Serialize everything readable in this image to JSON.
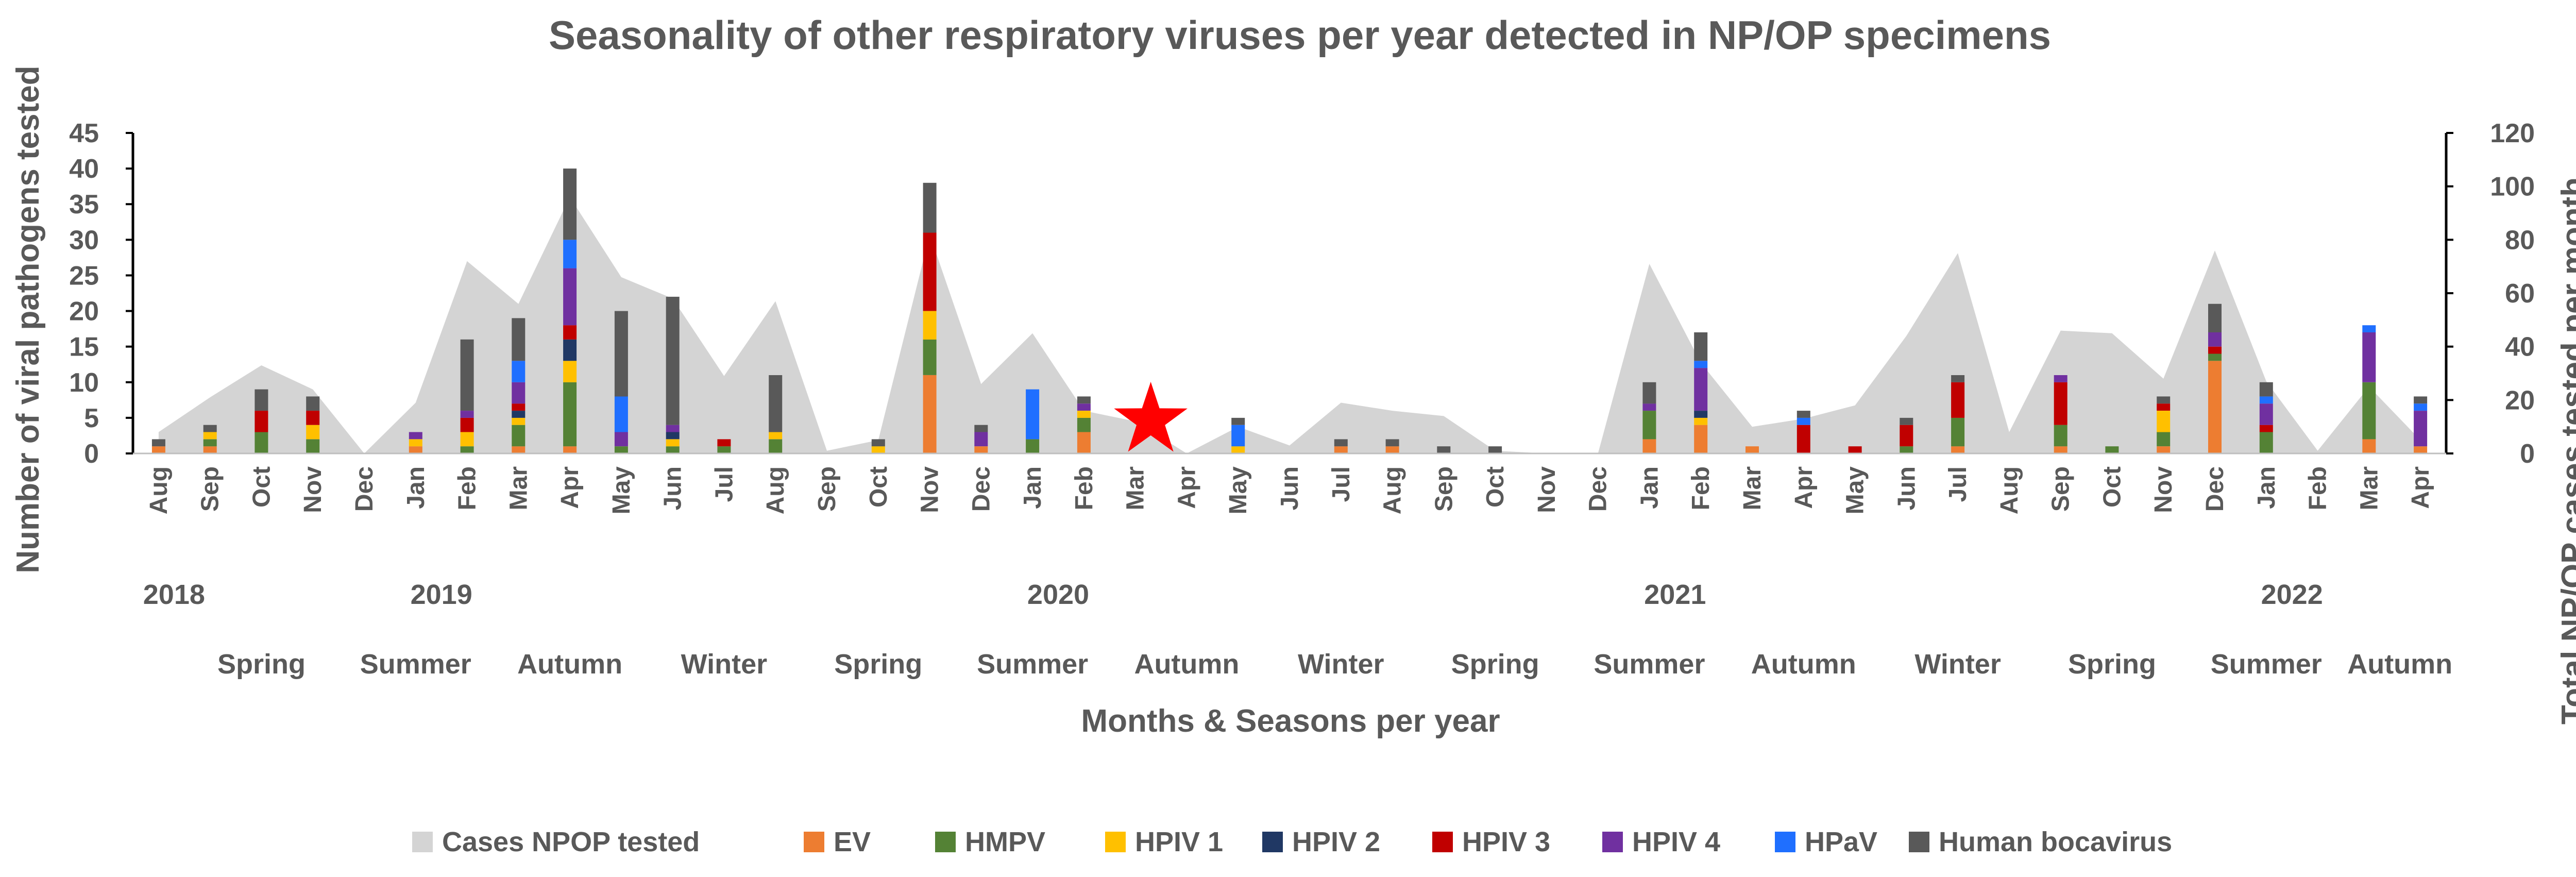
{
  "chart_data": {
    "type": "bar",
    "title": "Seasonality of other respiratory viruses per year detected in NP/OP specimens",
    "xlabel": "Months & Seasons per year",
    "ylabel": "Number of viral pathogens tested",
    "y2label": "Total NP/OP cases tested per month",
    "ylim": [
      0,
      45
    ],
    "y2lim": [
      0,
      120
    ],
    "yticks": [
      0,
      5,
      10,
      15,
      20,
      25,
      30,
      35,
      40,
      45
    ],
    "y2ticks": [
      0,
      20,
      40,
      60,
      80,
      100,
      120
    ],
    "legend_position": "bottom",
    "categories": [
      "Aug",
      "Sep",
      "Oct",
      "Nov",
      "Dec",
      "Jan",
      "Feb",
      "Mar",
      "Apr",
      "May",
      "Jun",
      "Jul",
      "Aug",
      "Sep",
      "Oct",
      "Nov",
      "Dec",
      "Jan",
      "Feb",
      "Mar",
      "Apr",
      "May",
      "Jun",
      "Jul",
      "Aug",
      "Sep",
      "Oct",
      "Nov",
      "Dec",
      "Jan",
      "Feb",
      "Mar",
      "Apr",
      "May",
      "Jun",
      "Jul",
      "Aug",
      "Sep",
      "Oct",
      "Nov",
      "Dec",
      "Jan",
      "Feb",
      "Mar",
      "Apr"
    ],
    "years": [
      {
        "label": "2018",
        "index": 0.3
      },
      {
        "label": "2019",
        "index": 5.5
      },
      {
        "label": "2020",
        "index": 17.5
      },
      {
        "label": "2021",
        "index": 29.5
      },
      {
        "label": "2022",
        "index": 41.5
      }
    ],
    "seasons": [
      {
        "label": "Spring",
        "index": 2
      },
      {
        "label": "Summer",
        "index": 5
      },
      {
        "label": "Autumn",
        "index": 8
      },
      {
        "label": "Winter",
        "index": 11
      },
      {
        "label": "Spring",
        "index": 14
      },
      {
        "label": "Summer",
        "index": 17
      },
      {
        "label": "Autumn",
        "index": 20
      },
      {
        "label": "Winter",
        "index": 23
      },
      {
        "label": "Spring",
        "index": 26
      },
      {
        "label": "Summer",
        "index": 29
      },
      {
        "label": "Autumn",
        "index": 32
      },
      {
        "label": "Winter",
        "index": 35
      },
      {
        "label": "Spring",
        "index": 38
      },
      {
        "label": "Summer",
        "index": 41
      },
      {
        "label": "Autumn",
        "index": 43.6
      }
    ],
    "area_series": {
      "name": "Cases NPOP tested",
      "color": "#d4d4d4",
      "values": [
        8,
        21,
        33,
        24,
        0,
        19,
        72,
        56,
        96,
        66,
        58,
        29,
        57,
        1,
        5,
        82,
        26,
        45,
        16,
        12,
        0,
        10,
        3,
        19,
        16,
        14,
        1,
        0,
        0,
        71,
        34,
        10,
        13,
        18,
        44,
        75,
        8,
        46,
        45,
        28,
        76,
        27,
        1,
        25,
        5
      ]
    },
    "series": [
      {
        "name": "EV",
        "color": "#ed7d31",
        "values": [
          1,
          1,
          0,
          0,
          0,
          1,
          0,
          1,
          1,
          0,
          0,
          0,
          0,
          0,
          0,
          11,
          1,
          0,
          3,
          0,
          0,
          0,
          0,
          1,
          1,
          0,
          0,
          0,
          0,
          2,
          4,
          1,
          0,
          0,
          0,
          1,
          0,
          1,
          0,
          1,
          13,
          0,
          0,
          2,
          1
        ]
      },
      {
        "name": "HMPV",
        "color": "#548235",
        "values": [
          0,
          1,
          3,
          2,
          0,
          0,
          1,
          3,
          9,
          1,
          1,
          1,
          2,
          0,
          0,
          5,
          0,
          2,
          2,
          0,
          0,
          0,
          0,
          0,
          0,
          0,
          0,
          0,
          0,
          4,
          0,
          0,
          0,
          0,
          1,
          4,
          0,
          3,
          1,
          2,
          1,
          3,
          0,
          8,
          0
        ]
      },
      {
        "name": "HPIV 1",
        "color": "#ffc000",
        "values": [
          0,
          1,
          0,
          2,
          0,
          1,
          2,
          1,
          3,
          0,
          1,
          0,
          1,
          0,
          1,
          4,
          0,
          0,
          1,
          0,
          0,
          1,
          0,
          0,
          0,
          0,
          0,
          0,
          0,
          0,
          1,
          0,
          0,
          0,
          0,
          0,
          0,
          0,
          0,
          3,
          0,
          0,
          0,
          0,
          0
        ]
      },
      {
        "name": "HPIV 2",
        "color": "#203864",
        "values": [
          0,
          0,
          0,
          0,
          0,
          0,
          0,
          1,
          3,
          0,
          1,
          0,
          0,
          0,
          0,
          0,
          0,
          0,
          0,
          0,
          0,
          0,
          0,
          0,
          0,
          0,
          0,
          0,
          0,
          0,
          1,
          0,
          0,
          0,
          0,
          0,
          0,
          0,
          0,
          0,
          0,
          0,
          0,
          0,
          0
        ]
      },
      {
        "name": "HPIV 3",
        "color": "#c00000",
        "values": [
          0,
          0,
          3,
          2,
          0,
          0,
          2,
          1,
          2,
          0,
          0,
          1,
          0,
          0,
          0,
          11,
          0,
          0,
          0,
          0,
          0,
          0,
          0,
          0,
          0,
          0,
          0,
          0,
          0,
          0,
          0,
          0,
          4,
          1,
          3,
          5,
          0,
          6,
          0,
          1,
          1,
          1,
          0,
          0,
          0
        ]
      },
      {
        "name": "HPIV 4",
        "color": "#7030a0",
        "values": [
          0,
          0,
          0,
          0,
          0,
          1,
          1,
          3,
          8,
          2,
          1,
          0,
          0,
          0,
          0,
          0,
          2,
          0,
          1,
          0,
          0,
          0,
          0,
          0,
          0,
          0,
          0,
          0,
          0,
          1,
          6,
          0,
          0,
          0,
          0,
          0,
          0,
          1,
          0,
          0,
          2,
          3,
          0,
          7,
          5
        ]
      },
      {
        "name": "HPaV",
        "color": "#1f6fff",
        "values": [
          0,
          0,
          0,
          0,
          0,
          0,
          0,
          3,
          4,
          5,
          0,
          0,
          0,
          0,
          0,
          0,
          0,
          7,
          0,
          0,
          0,
          3,
          0,
          0,
          0,
          0,
          0,
          0,
          0,
          0,
          1,
          0,
          1,
          0,
          0,
          0,
          0,
          0,
          0,
          0,
          0,
          1,
          0,
          1,
          1
        ]
      },
      {
        "name": "Human bocavirus",
        "color": "#595959",
        "values": [
          1,
          1,
          3,
          2,
          0,
          0,
          10,
          6,
          10,
          12,
          18,
          0,
          8,
          0,
          1,
          7,
          1,
          0,
          1,
          0,
          0,
          1,
          0,
          1,
          1,
          1,
          1,
          0,
          0,
          3,
          4,
          0,
          1,
          0,
          1,
          1,
          0,
          0,
          0,
          1,
          4,
          2,
          0,
          0,
          1
        ]
      }
    ],
    "annotations": [
      {
        "type": "star",
        "color": "#ff0000",
        "index": 19.3,
        "value": 5
      }
    ]
  }
}
